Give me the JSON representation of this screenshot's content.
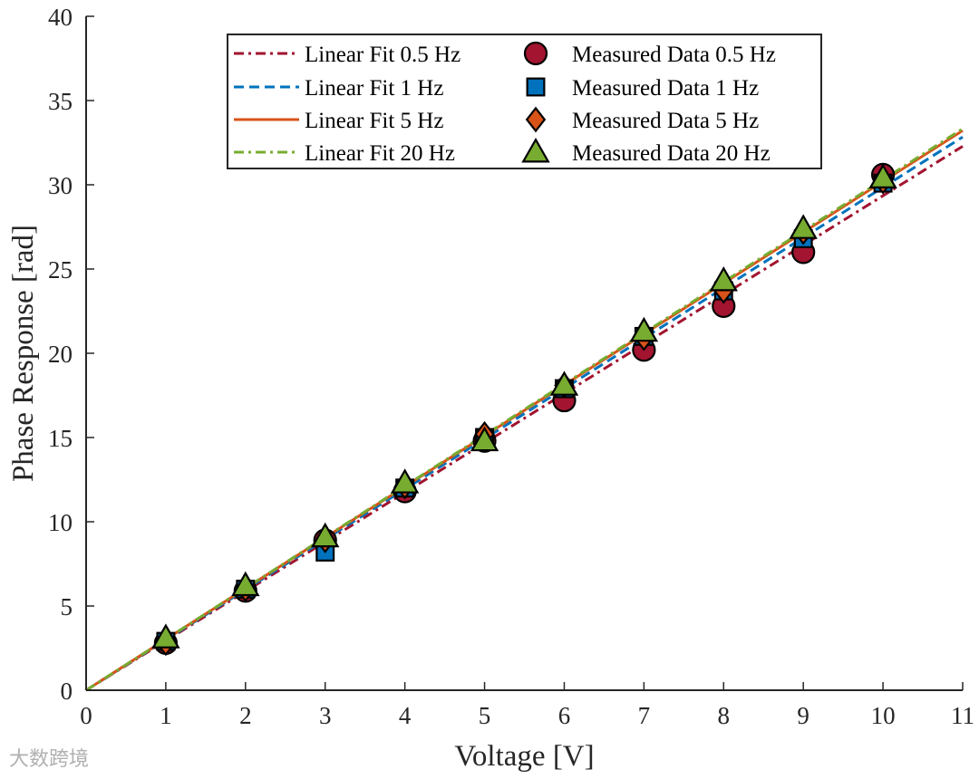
{
  "chart_data": {
    "type": "scatter",
    "title": "",
    "xlabel": "Voltage [V]",
    "ylabel": "Phase Response [rad]",
    "xlim": [
      0,
      11
    ],
    "ylim": [
      0,
      40
    ],
    "xticks": [
      0,
      1,
      2,
      3,
      4,
      5,
      6,
      7,
      8,
      9,
      10,
      11
    ],
    "yticks": [
      0,
      5,
      10,
      15,
      20,
      25,
      30,
      35,
      40
    ],
    "grid": false,
    "legend_placement": "top-center",
    "fits": [
      {
        "name": "Linear Fit 0.5 Hz",
        "slope": 2.935,
        "color": "#A2142F",
        "dash": "dashdot"
      },
      {
        "name": "Linear Fit 1 Hz",
        "slope": 2.985,
        "color": "#0072BD",
        "dash": "dashed"
      },
      {
        "name": "Linear Fit 5 Hz",
        "slope": 3.02,
        "color": "#D95319",
        "dash": "solid"
      },
      {
        "name": "Linear Fit 20 Hz",
        "slope": 3.03,
        "color": "#77AC30",
        "dash": "dashdot"
      }
    ],
    "series": [
      {
        "name": "Measured Data 0.5 Hz",
        "marker": "circle",
        "color": "#A2142F",
        "x": [
          1,
          2,
          3,
          4,
          5,
          6,
          7,
          8,
          9,
          10
        ],
        "y": [
          2.8,
          5.9,
          8.9,
          11.8,
          14.8,
          17.2,
          20.2,
          22.8,
          26.0,
          30.6
        ]
      },
      {
        "name": "Measured Data 1 Hz",
        "marker": "square",
        "color": "#0072BD",
        "x": [
          1,
          2,
          3,
          4,
          5,
          6,
          7,
          8,
          9,
          10
        ],
        "y": [
          2.9,
          6.0,
          8.2,
          12.0,
          15.0,
          17.9,
          21.0,
          23.7,
          26.8,
          30.1
        ]
      },
      {
        "name": "Measured Data 5 Hz",
        "marker": "diamond",
        "color": "#D95319",
        "x": [
          1,
          2,
          3,
          4,
          5,
          6,
          7,
          8,
          9,
          10
        ],
        "y": [
          2.8,
          6.0,
          8.9,
          12.1,
          15.2,
          18.1,
          20.9,
          23.7,
          27.2,
          30.2
        ]
      },
      {
        "name": "Measured Data 20 Hz",
        "marker": "triangle",
        "color": "#77AC30",
        "x": [
          1,
          2,
          3,
          4,
          5,
          6,
          7,
          8,
          9,
          10
        ],
        "y": [
          3.1,
          6.2,
          9.1,
          12.3,
          14.8,
          18.1,
          21.3,
          24.3,
          27.4,
          30.4
        ]
      }
    ]
  },
  "watermark": "大数跨境"
}
